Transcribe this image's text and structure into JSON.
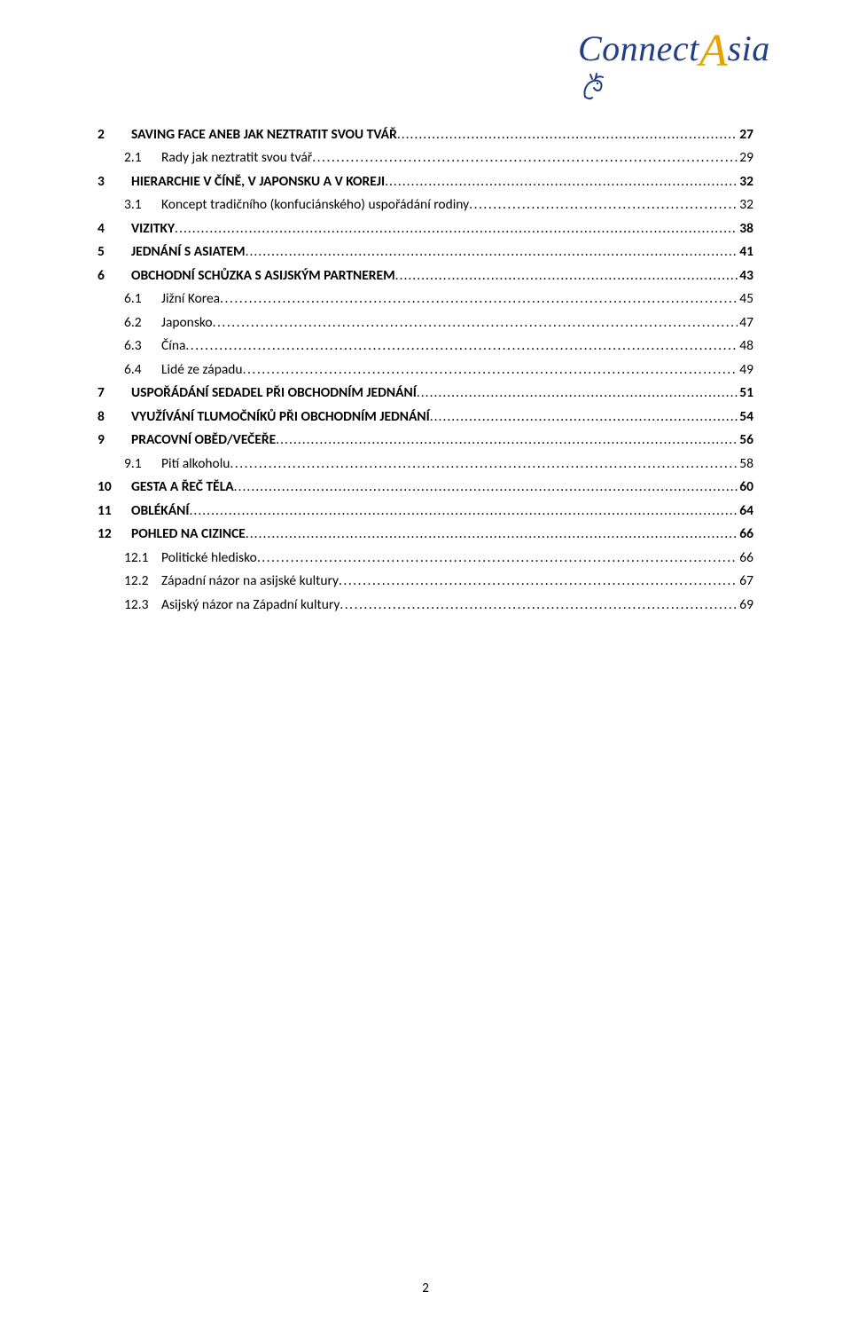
{
  "logo": {
    "word1": "Connect",
    "word2_first": "A",
    "word2_rest": "sia",
    "color_main": "#213f85",
    "color_accent": "#e4a400"
  },
  "toc": {
    "entries": [
      {
        "level": 1,
        "num": "2",
        "title": "SAVING FACE ANEB JAK NEZTRATIT SVOU TVÁŘ",
        "page": "27"
      },
      {
        "level": 2,
        "num": "2.1",
        "title": "Rady jak neztratit svou tvář",
        "page": "29"
      },
      {
        "level": 1,
        "num": "3",
        "title": "HIERARCHIE V ČÍNĚ, V JAPONSKU A V KOREJI",
        "page": "32"
      },
      {
        "level": 2,
        "num": "3.1",
        "title": "Koncept tradičního (konfuciánského) uspořádání rodiny",
        "page": "32"
      },
      {
        "level": 1,
        "num": "4",
        "title": "VIZITKY",
        "page": "38"
      },
      {
        "level": 1,
        "num": "5",
        "title": "JEDNÁNÍ S ASIATEM",
        "page": "41"
      },
      {
        "level": 1,
        "num": "6",
        "title": "OBCHODNÍ SCHŮZKA S ASIJSKÝM PARTNEREM",
        "page": "43"
      },
      {
        "level": 2,
        "num": "6.1",
        "title": "Jižní Korea",
        "page": "45"
      },
      {
        "level": 2,
        "num": "6.2",
        "title": "Japonsko",
        "page": "47"
      },
      {
        "level": 2,
        "num": "6.3",
        "title": "Čína",
        "page": "48"
      },
      {
        "level": 2,
        "num": "6.4",
        "title": "Lidé ze západu",
        "page": "49"
      },
      {
        "level": 1,
        "num": "7",
        "title": "USPOŘÁDÁNÍ SEDADEL PŘI OBCHODNÍM JEDNÁNÍ",
        "page": "51"
      },
      {
        "level": 1,
        "num": "8",
        "title": "VYUŽÍVÁNÍ TLUMOČNÍKŮ PŘI OBCHODNÍM JEDNÁNÍ",
        "page": "54"
      },
      {
        "level": 1,
        "num": "9",
        "title": "PRACOVNÍ OBĚD/VEČEŘE",
        "page": "56"
      },
      {
        "level": 2,
        "num": "9.1",
        "title": "Pití alkoholu",
        "page": "58"
      },
      {
        "level": 1,
        "num": "10",
        "title": "GESTA A ŘEČ TĚLA",
        "page": "60"
      },
      {
        "level": 1,
        "num": "11",
        "title": "OBLÉKÁNÍ",
        "page": "64"
      },
      {
        "level": 1,
        "num": "12",
        "title": "POHLED NA CIZINCE",
        "page": "66"
      },
      {
        "level": 2,
        "num": "12.1",
        "title": "Politické hledisko",
        "page": "66"
      },
      {
        "level": 2,
        "num": "12.2",
        "title": "Západní názor na asijské kultury",
        "page": "67"
      },
      {
        "level": 2,
        "num": "12.3",
        "title": "Asijský názor na Západní kultury",
        "page": "69"
      }
    ]
  },
  "page_number": "2"
}
